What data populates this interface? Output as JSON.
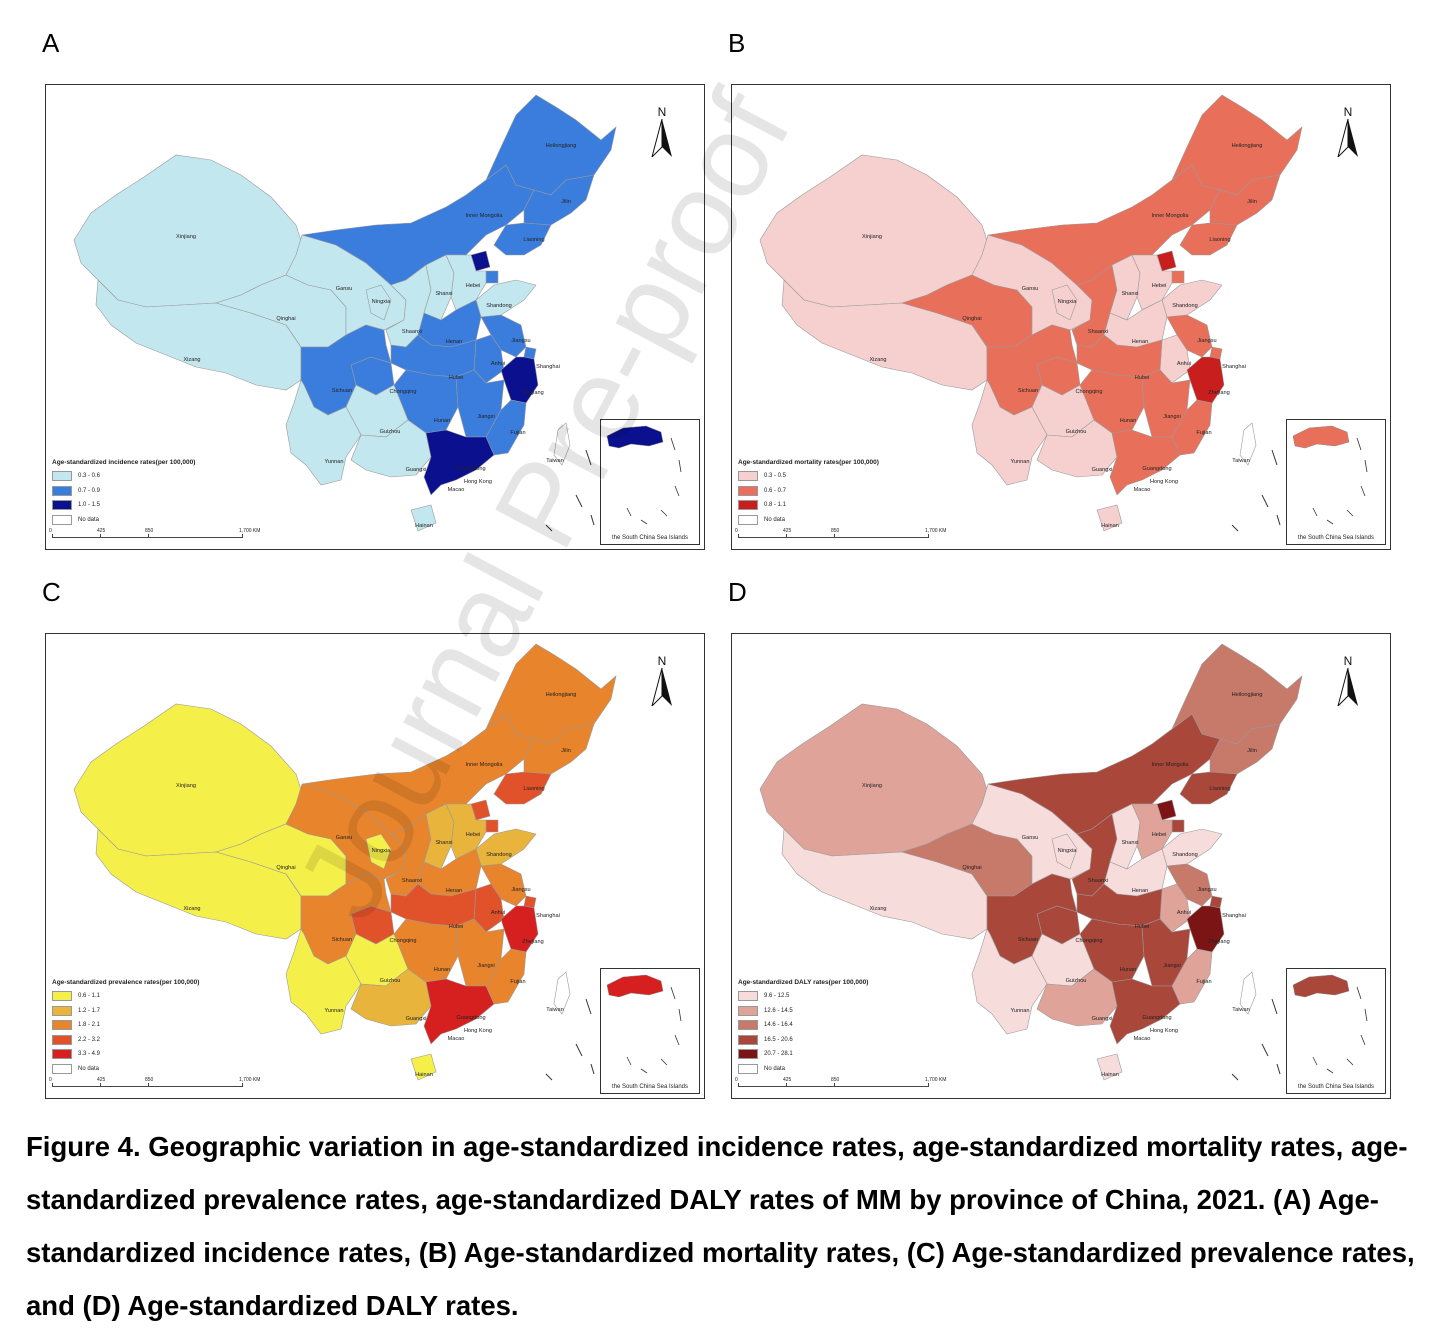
{
  "panels": [
    {
      "letter": "A",
      "legend_title": "Age-standardized incidence rates(per 100,000)",
      "legend": [
        {
          "label": "0.3 - 0.6",
          "color": "#c2e7ee"
        },
        {
          "label": "0.7 - 0.9",
          "color": "#3b7ddd"
        },
        {
          "label": "1.0 - 1.5",
          "color": "#0b108f"
        },
        {
          "label": "No data",
          "color": "#ffffff"
        }
      ],
      "classes": {
        "Xinjiang": 0,
        "Xizang": 0,
        "Qinghai": 0,
        "Gansu": 0,
        "Ningxia": 0,
        "Shaanxi": 0,
        "Shanxi": 0,
        "Hebei": 0,
        "Shandong": 0,
        "Yunnan": 0,
        "Guizhou": 0,
        "Guangxi": 0,
        "Hainan": 0,
        "Heilongjiang": 1,
        "Jilin": 1,
        "Liaoning": 1,
        "InnerMongolia": 1,
        "Henan": 1,
        "Sichuan": 1,
        "Chongqing": 1,
        "Hubei": 1,
        "Hunan": 1,
        "Jiangxi": 1,
        "Fujian": 1,
        "Anhui": 1,
        "Jiangsu": 1,
        "Beijing": 2,
        "Tianjin": 1,
        "Shanghai": 1,
        "Zhejiang": 2,
        "Guangdong": 2,
        "Taiwan": -1
      },
      "inset_class": 2
    },
    {
      "letter": "B",
      "legend_title": "Age-standardized mortality rates(per 100,000)",
      "legend": [
        {
          "label": "0.3 - 0.5",
          "color": "#f6cfcf"
        },
        {
          "label": "0.6 - 0.7",
          "color": "#e8705a"
        },
        {
          "label": "0.8 - 1.1",
          "color": "#c81e1e"
        },
        {
          "label": "No data",
          "color": "#ffffff"
        }
      ],
      "classes": {
        "Xinjiang": 0,
        "Xizang": 0,
        "Gansu": 0,
        "Ningxia": 0,
        "Shanxi": 0,
        "Hebei": 0,
        "Shandong": 0,
        "Henan": 0,
        "Anhui": 0,
        "Yunnan": 0,
        "Guizhou": 0,
        "Guangxi": 0,
        "Hainan": 0,
        "Heilongjiang": 1,
        "Jilin": 1,
        "Liaoning": 1,
        "InnerMongolia": 1,
        "Qinghai": 1,
        "Shaanxi": 1,
        "Sichuan": 1,
        "Chongqing": 1,
        "Hubei": 1,
        "Hunan": 1,
        "Jiangxi": 1,
        "Fujian": 1,
        "Guangdong": 1,
        "Jiangsu": 1,
        "Beijing": 2,
        "Tianjin": 1,
        "Shanghai": 1,
        "Zhejiang": 2,
        "Taiwan": -1
      },
      "inset_class": 1
    },
    {
      "letter": "C",
      "legend_title": "Age-standardized prevalence rates(per 100,000)",
      "legend": [
        {
          "label": "0.6 - 1.1",
          "color": "#f5ef4a"
        },
        {
          "label": "1.2 - 1.7",
          "color": "#e8b43c"
        },
        {
          "label": "1.8 - 2.1",
          "color": "#e8842c"
        },
        {
          "label": "2.2 - 3.2",
          "color": "#e2522a"
        },
        {
          "label": "3.3 - 4.9",
          "color": "#d61f1f"
        },
        {
          "label": "No data",
          "color": "#ffffff"
        }
      ],
      "classes": {
        "Xinjiang": 0,
        "Xizang": 0,
        "Qinghai": 0,
        "Ningxia": 0,
        "Yunnan": 0,
        "Guizhou": 0,
        "Hainan": 0,
        "Shanxi": 1,
        "Hebei": 1,
        "Shandong": 1,
        "Guangxi": 1,
        "Heilongjiang": 2,
        "Jilin": 2,
        "InnerMongolia": 2,
        "Gansu": 2,
        "Shaanxi": 2,
        "Sichuan": 2,
        "Henan": 2,
        "Jiangsu": 2,
        "Jiangxi": 2,
        "Fujian": 2,
        "Hunan": 2,
        "Liaoning": 3,
        "Chongqing": 3,
        "Hubei": 3,
        "Anhui": 3,
        "Tianjin": 3,
        "Beijing": 3,
        "Zhejiang": 4,
        "Guangdong": 4,
        "Shanghai": 3,
        "Taiwan": -1
      },
      "inset_class": 4
    },
    {
      "letter": "D",
      "legend_title": "Age-standardized DALY rates(per 100,000)",
      "legend": [
        {
          "label": "9.6 - 12.5",
          "color": "#f7dcdc"
        },
        {
          "label": "12.6 - 14.5",
          "color": "#dfa39a"
        },
        {
          "label": "14.6 - 16.4",
          "color": "#c7796a"
        },
        {
          "label": "16.5 - 20.6",
          "color": "#a9473a"
        },
        {
          "label": "20.7 - 28.1",
          "color": "#7b1414"
        },
        {
          "label": "No data",
          "color": "#ffffff"
        }
      ],
      "classes": {
        "Xizang": 0,
        "Yunnan": 0,
        "Guizhou": 0,
        "Hainan": 0,
        "Ningxia": 0,
        "Shanxi": 0,
        "Shandong": 0,
        "Henan": 0,
        "Gansu": 0,
        "Xinjiang": 1,
        "Guangxi": 1,
        "Hebei": 1,
        "Fujian": 1,
        "Anhui": 1,
        "Qinghai": 2,
        "Jiangsu": 2,
        "Heilongjiang": 2,
        "Jilin": 2,
        "InnerMongolia": 3,
        "Liaoning": 3,
        "Shaanxi": 3,
        "Sichuan": 3,
        "Chongqing": 3,
        "Hubei": 3,
        "Hunan": 3,
        "Jiangxi": 3,
        "Guangdong": 3,
        "Beijing": 4,
        "Tianjin": 3,
        "Shanghai": 3,
        "Zhejiang": 4,
        "Taiwan": -1
      },
      "inset_class": 3
    }
  ],
  "provinces": {
    "Heilongjiang": "Heilongjiang",
    "Jilin": "Jilin",
    "InnerMongolia": "Inner Mongolia",
    "Liaoning": "Liaoning",
    "Xinjiang": "Xinjiang",
    "Gansu": "Gansu",
    "Ningxia": "Ningxia",
    "Shanxi": "Shanxi",
    "Hebei": "Hebei",
    "Shandong": "Shandong",
    "Qinghai": "Qinghai",
    "Shaanxi": "Shaanxi",
    "Henan": "Henan",
    "Jiangsu": "Jiangsu",
    "Xizang": "Xizang",
    "Anhui": "Anhui",
    "Shanghai": "Shanghai",
    "Hubei": "Hubei",
    "Sichuan": "Sichuan",
    "Chongqing": "Chongqing",
    "Zhejiang": "Zhejiang",
    "Hunan": "Hunan",
    "Jiangxi": "Jiangxi",
    "Guizhou": "Guizhou",
    "Fujian": "Fujian",
    "Taiwan": "Taiwan",
    "Yunnan": "Yunnan",
    "Guangxi": "Guangxi",
    "Guangdong": "Guangdong",
    "HongKong": "Hong Kong",
    "Macao": "Macao",
    "Hainan": "Hainan"
  },
  "north_label": "N",
  "scale_labels": [
    "0",
    "425",
    "850",
    "1,700 KM"
  ],
  "inset_label": "the South China Sea Islands",
  "watermark": "Journal Pre-proof",
  "caption": "Figure 4. Geographic variation in age-standardized incidence rates, age-standardized mortality rates, age-standardized prevalence rates, age-standardized DALY rates of MM by province of China, 2021. (A) Age-standardized incidence rates, (B) Age-standardized mortality rates, (C) Age-standardized prevalence rates, and (D) Age-standardized DALY rates."
}
